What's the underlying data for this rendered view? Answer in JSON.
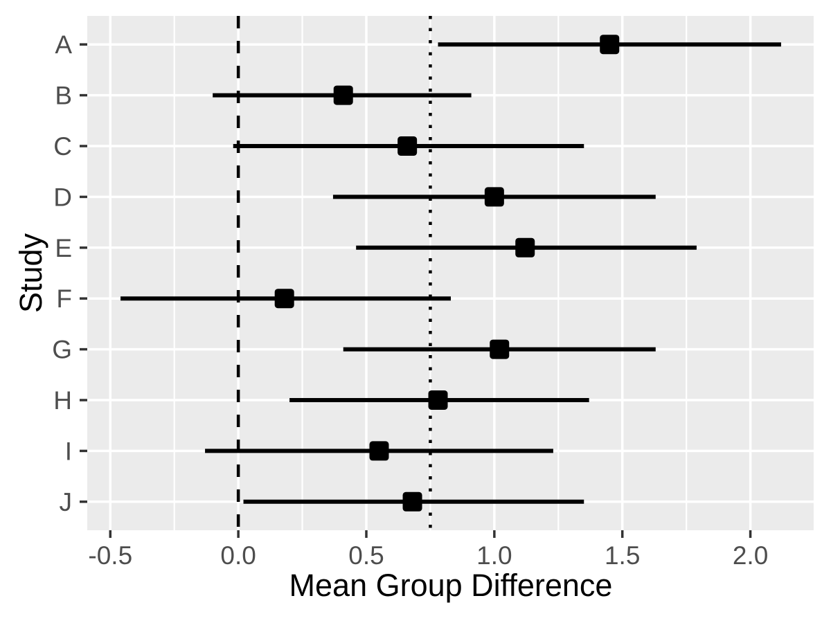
{
  "chart_data": {
    "type": "scatter",
    "subtype": "forest-plot",
    "title": "",
    "xlabel": "Mean Group Difference",
    "ylabel": "Study",
    "categories": [
      "A",
      "B",
      "C",
      "D",
      "E",
      "F",
      "G",
      "H",
      "I",
      "J"
    ],
    "studies": [
      {
        "label": "A",
        "estimate": 1.45,
        "ci_low": 0.78,
        "ci_high": 2.12
      },
      {
        "label": "B",
        "estimate": 0.41,
        "ci_low": -0.1,
        "ci_high": 0.91
      },
      {
        "label": "C",
        "estimate": 0.66,
        "ci_low": -0.02,
        "ci_high": 1.35
      },
      {
        "label": "D",
        "estimate": 1.0,
        "ci_low": 0.37,
        "ci_high": 1.63
      },
      {
        "label": "E",
        "estimate": 1.12,
        "ci_low": 0.46,
        "ci_high": 1.79
      },
      {
        "label": "F",
        "estimate": 0.18,
        "ci_low": -0.46,
        "ci_high": 0.83
      },
      {
        "label": "G",
        "estimate": 1.02,
        "ci_low": 0.41,
        "ci_high": 1.63
      },
      {
        "label": "H",
        "estimate": 0.78,
        "ci_low": 0.2,
        "ci_high": 1.37
      },
      {
        "label": "I",
        "estimate": 0.55,
        "ci_low": -0.13,
        "ci_high": 1.23
      },
      {
        "label": "J",
        "estimate": 0.68,
        "ci_low": 0.02,
        "ci_high": 1.35
      }
    ],
    "x_ticks": [
      {
        "value": -0.5,
        "label": "-0.5"
      },
      {
        "value": 0.0,
        "label": "0.0"
      },
      {
        "value": 0.5,
        "label": "0.5"
      },
      {
        "value": 1.0,
        "label": "1.0"
      },
      {
        "value": 1.5,
        "label": "1.5"
      },
      {
        "value": 2.0,
        "label": "2.0"
      }
    ],
    "x_minor_ticks": [
      -0.25,
      0.25,
      0.75,
      1.25,
      1.75,
      2.25
    ],
    "xlim": [
      -0.59,
      2.25
    ],
    "reference_lines": [
      {
        "x": 0.0,
        "style": "dashed",
        "color": "#000000",
        "name": "zero-reference-line"
      },
      {
        "x": 0.75,
        "style": "dotted",
        "color": "#000000",
        "name": "pooled-mean-reference-line"
      }
    ],
    "grid": true,
    "legend": false
  },
  "style": {
    "panel_bg": "#EBEBEB",
    "grid_major_color": "#FFFFFF",
    "grid_minor_color": "#FFFFFF",
    "marker_color": "#000000",
    "ci_color": "#000000",
    "tick_label_color": "#4D4D4D",
    "axis_title_color": "#000000",
    "tick_mark_color": "#333333"
  }
}
